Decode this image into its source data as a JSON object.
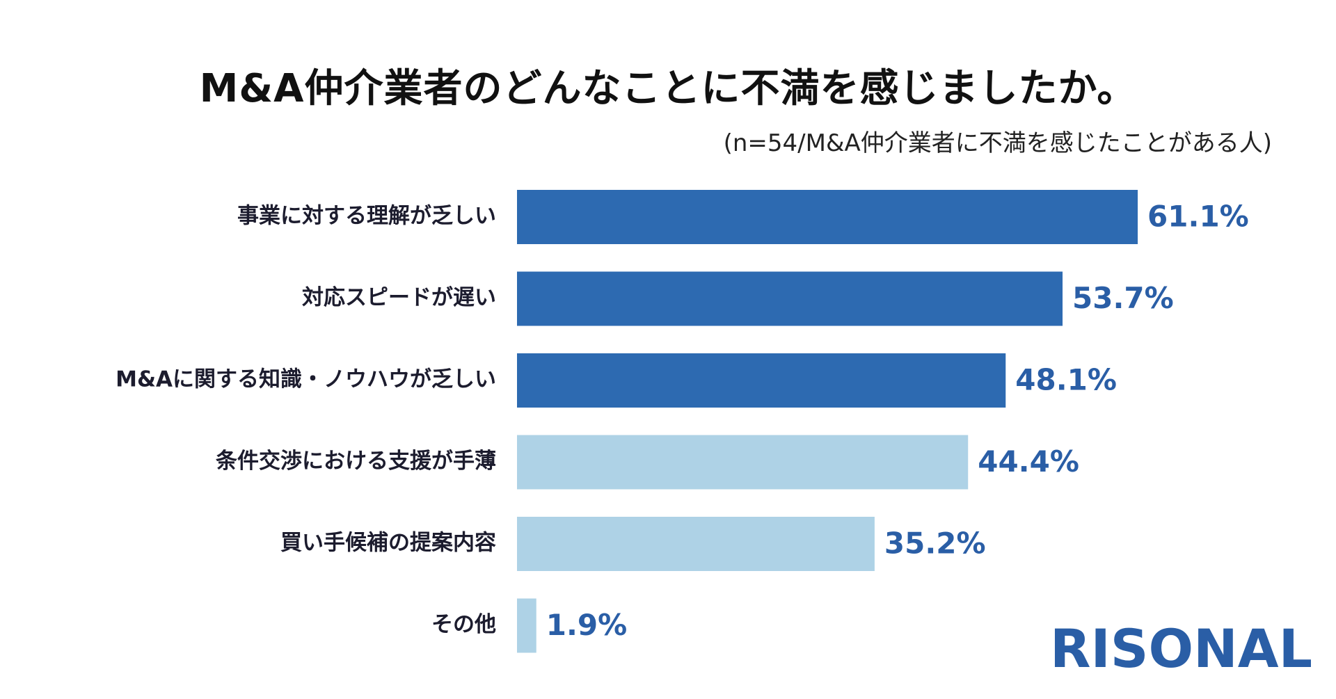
{
  "chart_data": {
    "type": "bar",
    "orientation": "horizontal",
    "title": "M&A仲介業者のどんなことに不満を感じましたか。",
    "subtitle": "(n=54/M&A仲介業者に不満を感じたことがある人)",
    "categories": [
      "事業に対する理解が乏しい",
      "対応スピードが遅い",
      "M&Aに関する知識・ノウハウが乏しい",
      "条件交渉における支援が手薄",
      "買い手候補の提案内容",
      "その他"
    ],
    "values": [
      61.1,
      53.7,
      48.1,
      44.4,
      35.2,
      1.9
    ],
    "value_labels": [
      "61.1%",
      "53.7%",
      "48.1%",
      "44.4%",
      "35.2%",
      "1.9%"
    ],
    "bar_colors": [
      "#2d6ab1",
      "#2d6ab1",
      "#2d6ab1",
      "#aed2e6",
      "#aed2e6",
      "#aed2e6"
    ],
    "xlim": [
      0,
      100
    ],
    "grid": false,
    "legend": "none"
  },
  "brand": {
    "name": "RISONAL",
    "color": "#2a5ea6"
  }
}
